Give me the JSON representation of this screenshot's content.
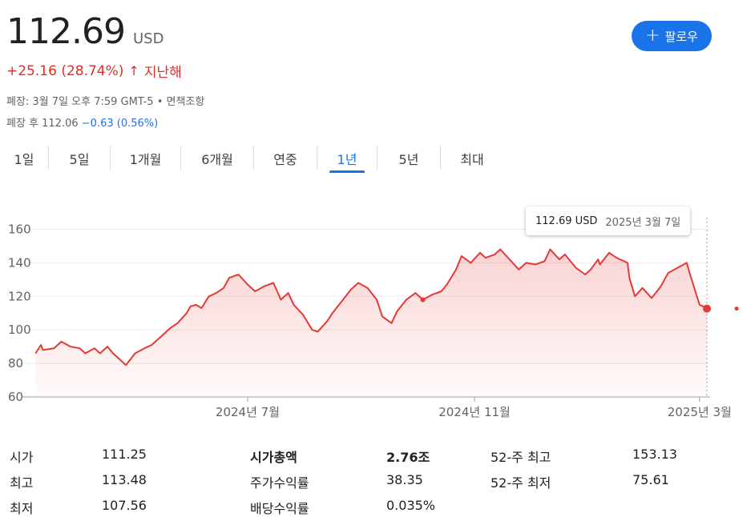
{
  "header": {
    "price": "112.69",
    "currency": "USD",
    "change": "+25.16 (28.74%)",
    "change_arrow": "↑",
    "change_period": "지난해",
    "market_status": "폐장: 3월 7일 오후 7:59 GMT-5",
    "separator": "•",
    "disclaimer": "면책조항",
    "after_hours_label": "폐장 후 112.06",
    "after_hours_change": "−0.63 (0.56%)",
    "follow_label": "팔로우",
    "follow_icon": "plus-icon"
  },
  "tabs": [
    {
      "label": "1일",
      "active": false
    },
    {
      "label": "5일",
      "active": false
    },
    {
      "label": "1개월",
      "active": false
    },
    {
      "label": "6개월",
      "active": false
    },
    {
      "label": "연중",
      "active": false
    },
    {
      "label": "1년",
      "active": true
    },
    {
      "label": "5년",
      "active": false
    },
    {
      "label": "최대",
      "active": false
    }
  ],
  "tooltip": {
    "price": "112.69 USD",
    "date": "2025년 3월 7일"
  },
  "chart_data": {
    "type": "area",
    "y_ticks": [
      60,
      80,
      100,
      120,
      140,
      160
    ],
    "y_tick_labels": [
      "60",
      "80",
      "100",
      "120",
      "140",
      "160"
    ],
    "ylim": [
      60,
      165
    ],
    "x_ticks": [
      {
        "label": "2024년 7월",
        "date": "2024-07-01"
      },
      {
        "label": "2024년 11월",
        "date": "2024-11-01"
      },
      {
        "label": "2025년 3월",
        "date": "2025-03-03"
      }
    ],
    "x_range": [
      "2024-03-07",
      "2025-03-07"
    ],
    "previous_close_dot": {
      "date": "2024-10-04",
      "value": 118
    },
    "line_color": "#e53935",
    "fill_color": "#e53935",
    "grid": true,
    "series": [
      {
        "x": [
          "2024-03-08",
          "2024-03-11",
          "2024-03-12",
          "2024-03-18",
          "2024-03-22",
          "2024-03-27",
          "2024-04-01",
          "2024-04-04",
          "2024-04-09",
          "2024-04-12",
          "2024-04-16",
          "2024-04-19",
          "2024-04-23",
          "2024-04-26",
          "2024-05-01",
          "2024-05-06",
          "2024-05-10",
          "2024-05-15",
          "2024-05-20",
          "2024-05-24",
          "2024-05-29",
          "2024-05-31",
          "2024-06-03",
          "2024-06-06",
          "2024-06-10",
          "2024-06-14",
          "2024-06-18",
          "2024-06-21",
          "2024-06-26",
          "2024-07-01",
          "2024-07-05",
          "2024-07-10",
          "2024-07-15",
          "2024-07-19",
          "2024-07-23",
          "2024-07-26",
          "2024-07-31",
          "2024-08-05",
          "2024-08-08",
          "2024-08-13",
          "2024-08-16",
          "2024-08-21",
          "2024-08-26",
          "2024-08-30",
          "2024-09-04",
          "2024-09-09",
          "2024-09-12",
          "2024-09-17",
          "2024-09-20",
          "2024-09-25",
          "2024-09-30",
          "2024-10-04",
          "2024-10-09",
          "2024-10-14",
          "2024-10-17",
          "2024-10-22",
          "2024-10-25",
          "2024-10-30",
          "2024-11-04",
          "2024-11-07",
          "2024-11-12",
          "2024-11-15",
          "2024-11-20",
          "2024-11-25",
          "2024-11-29",
          "2024-12-04",
          "2024-12-09",
          "2024-12-12",
          "2024-12-17",
          "2024-12-20",
          "2024-12-26",
          "2024-12-31",
          "2025-01-03",
          "2025-01-07",
          "2025-01-08",
          "2025-01-13",
          "2025-01-17",
          "2025-01-23",
          "2025-01-24",
          "2025-01-27",
          "2025-01-31",
          "2025-02-05",
          "2025-02-10",
          "2025-02-14",
          "2025-02-19",
          "2025-02-24",
          "2025-02-27",
          "2025-03-03",
          "2025-03-05",
          "2025-03-07"
        ],
        "values": [
          86,
          91,
          88,
          89,
          93,
          90,
          89,
          86,
          89,
          86,
          90,
          86,
          82,
          79,
          86,
          89,
          91,
          96,
          101,
          104,
          110,
          114,
          115,
          113,
          120,
          122,
          125,
          131,
          133,
          127,
          123,
          126,
          128,
          118,
          122,
          115,
          109,
          100,
          99,
          105,
          110,
          117,
          124,
          128,
          125,
          118,
          108,
          104,
          111,
          118,
          122,
          118,
          121,
          123,
          127,
          136,
          144,
          140,
          146,
          143,
          145,
          148,
          142,
          136,
          140,
          139,
          141,
          148,
          142,
          145,
          137,
          133,
          136,
          142,
          139,
          146,
          143,
          140,
          131,
          120,
          125,
          119,
          126,
          134,
          137,
          140,
          129,
          115,
          114,
          112.69
        ]
      }
    ]
  },
  "stats": [
    {
      "label": "시가",
      "value": "111.25"
    },
    {
      "label": "최고",
      "value": "113.48"
    },
    {
      "label": "최저",
      "value": "107.56"
    },
    {
      "label": "시가총액",
      "value": "2.76조"
    },
    {
      "label": "주가수익률",
      "value": "38.35"
    },
    {
      "label": "배당수익률",
      "value": "0.035%"
    },
    {
      "label": "52-주 최고",
      "value": "153.13"
    },
    {
      "label": "52-주 최저",
      "value": "75.61"
    }
  ]
}
